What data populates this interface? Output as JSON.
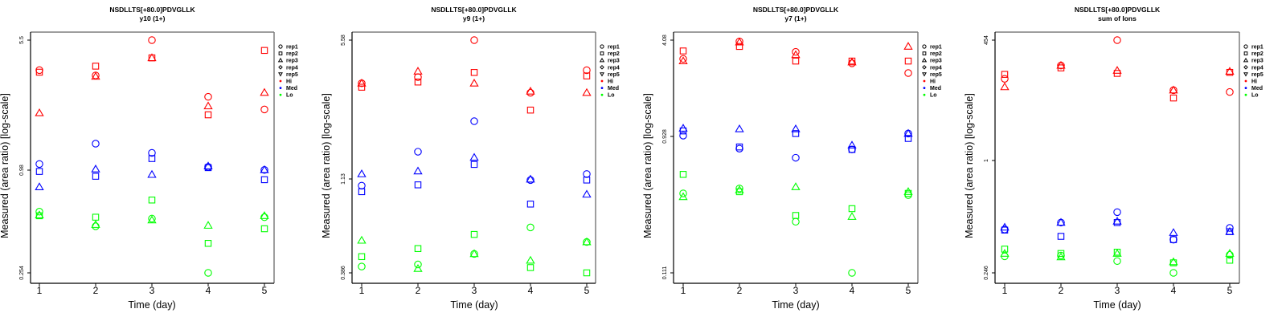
{
  "figure": {
    "legend_entries": [
      {
        "label": "rep1",
        "symbol": "circle"
      },
      {
        "label": "rep2",
        "symbol": "square"
      },
      {
        "label": "rep3",
        "symbol": "triangle-up"
      },
      {
        "label": "rep4",
        "symbol": "diamond"
      },
      {
        "label": "rep5",
        "symbol": "triangle-down"
      },
      {
        "label": "Hi",
        "symbol": "dot",
        "color": "#ff0000"
      },
      {
        "label": "Med",
        "symbol": "dot",
        "color": "#0000ff"
      },
      {
        "label": "Lo",
        "symbol": "dot",
        "color": "#00ff00"
      }
    ],
    "group_colors": {
      "Hi": "#ff0000",
      "Med": "#0000ff",
      "Lo": "#00ff00"
    }
  },
  "chart_data": [
    {
      "type": "scatter",
      "title": "NSDLLTS[+80.0]PDVGLLK",
      "subtitle": "y10 (1+)",
      "xlabel": "Time (day)",
      "ylabel": "Measured (area ratio) [log-scale]",
      "yscale": "log",
      "x_ticks": [
        "1",
        "2",
        "3",
        "4",
        "5"
      ],
      "y_ticks": [
        "5.5",
        "0.98",
        "0.254"
      ],
      "ylim": [
        0.24,
        6.3
      ],
      "legend": "right",
      "grid": false,
      "series": [
        {
          "group": "Hi",
          "rep": "rep1",
          "points": [
            [
              1,
              3.7
            ],
            [
              2,
              3.45
            ],
            [
              3,
              5.5
            ],
            [
              4,
              2.6
            ],
            [
              5,
              2.2
            ]
          ]
        },
        {
          "group": "Hi",
          "rep": "rep2",
          "points": [
            [
              1,
              3.6
            ],
            [
              2,
              3.9
            ],
            [
              3,
              4.35
            ],
            [
              4,
              2.05
            ],
            [
              5,
              4.8
            ]
          ]
        },
        {
          "group": "Hi",
          "rep": "rep3",
          "points": [
            [
              1,
              2.1
            ],
            [
              2,
              3.4
            ],
            [
              3,
              4.35
            ],
            [
              4,
              2.3
            ],
            [
              5,
              2.75
            ]
          ]
        },
        {
          "group": "Med",
          "rep": "rep1",
          "points": [
            [
              1,
              1.07
            ],
            [
              2,
              1.4
            ],
            [
              3,
              1.24
            ],
            [
              4,
              1.03
            ],
            [
              5,
              0.99
            ]
          ]
        },
        {
          "group": "Med",
          "rep": "rep2",
          "points": [
            [
              1,
              0.97
            ],
            [
              2,
              0.91
            ],
            [
              3,
              1.15
            ],
            [
              4,
              1.02
            ],
            [
              5,
              0.87
            ]
          ]
        },
        {
          "group": "Med",
          "rep": "rep3",
          "points": [
            [
              1,
              0.79
            ],
            [
              2,
              1.0
            ],
            [
              3,
              0.93
            ],
            [
              4,
              1.04
            ],
            [
              5,
              0.99
            ]
          ]
        },
        {
          "group": "Lo",
          "rep": "rep1",
          "points": [
            [
              1,
              0.57
            ],
            [
              2,
              0.47
            ],
            [
              3,
              0.52
            ],
            [
              4,
              0.254
            ],
            [
              5,
              0.53
            ]
          ]
        },
        {
          "group": "Lo",
          "rep": "rep2",
          "points": [
            [
              1,
              0.54
            ],
            [
              2,
              0.53
            ],
            [
              3,
              0.665
            ],
            [
              4,
              0.375
            ],
            [
              5,
              0.455
            ]
          ]
        },
        {
          "group": "Lo",
          "rep": "rep3",
          "points": [
            [
              1,
              0.545
            ],
            [
              2,
              0.48
            ],
            [
              3,
              0.51
            ],
            [
              4,
              0.475
            ],
            [
              5,
              0.54
            ]
          ]
        }
      ]
    },
    {
      "type": "scatter",
      "title": "NSDLLTS[+80.0]PDVGLLK",
      "subtitle": "y9 (1+)",
      "xlabel": "Time (day)",
      "ylabel": "Measured (area ratio) [log-scale]",
      "yscale": "log",
      "x_ticks": [
        "1",
        "2",
        "3",
        "4",
        "5"
      ],
      "y_ticks": [
        "5.58",
        "1.13",
        "0.386"
      ],
      "ylim": [
        0.36,
        6.4
      ],
      "legend": "right",
      "grid": false,
      "series": [
        {
          "group": "Hi",
          "rep": "rep1",
          "points": [
            [
              1,
              3.4
            ],
            [
              2,
              3.65
            ],
            [
              3,
              5.58
            ],
            [
              4,
              3.05
            ],
            [
              5,
              3.95
            ]
          ]
        },
        {
          "group": "Hi",
          "rep": "rep2",
          "points": [
            [
              1,
              3.25
            ],
            [
              2,
              3.45
            ],
            [
              3,
              3.85
            ],
            [
              4,
              2.5
            ],
            [
              5,
              3.7
            ]
          ]
        },
        {
          "group": "Hi",
          "rep": "rep3",
          "points": [
            [
              1,
              3.4
            ],
            [
              2,
              3.9
            ],
            [
              3,
              3.4
            ],
            [
              4,
              3.1
            ],
            [
              5,
              3.05
            ]
          ]
        },
        {
          "group": "Med",
          "rep": "rep1",
          "points": [
            [
              1,
              1.05
            ],
            [
              2,
              1.55
            ],
            [
              3,
              2.2
            ],
            [
              4,
              1.12
            ],
            [
              5,
              1.2
            ]
          ]
        },
        {
          "group": "Med",
          "rep": "rep2",
          "points": [
            [
              1,
              0.98
            ],
            [
              2,
              1.06
            ],
            [
              3,
              1.34
            ],
            [
              4,
              0.85
            ],
            [
              5,
              1.12
            ]
          ]
        },
        {
          "group": "Med",
          "rep": "rep3",
          "points": [
            [
              1,
              1.2
            ],
            [
              2,
              1.24
            ],
            [
              3,
              1.45
            ],
            [
              4,
              1.13
            ],
            [
              5,
              0.95
            ]
          ]
        },
        {
          "group": "Lo",
          "rep": "rep1",
          "points": [
            [
              1,
              0.415
            ],
            [
              2,
              0.425
            ],
            [
              3,
              0.48
            ],
            [
              4,
              0.65
            ],
            [
              5,
              0.55
            ]
          ]
        },
        {
          "group": "Lo",
          "rep": "rep2",
          "points": [
            [
              1,
              0.465
            ],
            [
              2,
              0.51
            ],
            [
              3,
              0.6
            ],
            [
              4,
              0.41
            ],
            [
              5,
              0.386
            ]
          ]
        },
        {
          "group": "Lo",
          "rep": "rep3",
          "points": [
            [
              1,
              0.56
            ],
            [
              2,
              0.405
            ],
            [
              3,
              0.48
            ],
            [
              4,
              0.445
            ],
            [
              5,
              0.55
            ]
          ]
        }
      ]
    },
    {
      "type": "scatter",
      "title": "NSDLLTS[+80.0]PDVGLLK",
      "subtitle": "y7 (1+)",
      "xlabel": "Time (day)",
      "ylabel": "Measured (area ratio) [log-scale]",
      "yscale": "log",
      "x_ticks": [
        "1",
        "2",
        "3",
        "4",
        "5"
      ],
      "y_ticks": [
        "4.08",
        "0.928",
        "0.111"
      ],
      "ylim": [
        0.1,
        4.9
      ],
      "legend": "right",
      "grid": false,
      "series": [
        {
          "group": "Hi",
          "rep": "rep1",
          "points": [
            [
              1,
              3.05
            ],
            [
              2,
              4.0
            ],
            [
              3,
              3.4
            ],
            [
              4,
              2.85
            ],
            [
              5,
              2.45
            ]
          ]
        },
        {
          "group": "Hi",
          "rep": "rep2",
          "points": [
            [
              1,
              3.45
            ],
            [
              2,
              3.7
            ],
            [
              3,
              2.95
            ],
            [
              4,
              2.95
            ],
            [
              5,
              2.95
            ]
          ]
        },
        {
          "group": "Hi",
          "rep": "rep3",
          "points": [
            [
              1,
              2.95
            ],
            [
              2,
              3.95
            ],
            [
              3,
              3.25
            ],
            [
              4,
              2.9
            ],
            [
              5,
              3.7
            ]
          ]
        },
        {
          "group": "Med",
          "rep": "rep1",
          "points": [
            [
              1,
              0.93
            ],
            [
              2,
              0.76
            ],
            [
              3,
              0.66
            ],
            [
              4,
              0.75
            ],
            [
              5,
              0.96
            ]
          ]
        },
        {
          "group": "Med",
          "rep": "rep2",
          "points": [
            [
              1,
              1.0
            ],
            [
              2,
              0.78
            ],
            [
              3,
              0.96
            ],
            [
              4,
              0.75
            ],
            [
              5,
              0.89
            ]
          ]
        },
        {
          "group": "Med",
          "rep": "rep3",
          "points": [
            [
              1,
              1.04
            ],
            [
              2,
              1.03
            ],
            [
              3,
              1.03
            ],
            [
              4,
              0.8
            ],
            [
              5,
              0.96
            ]
          ]
        },
        {
          "group": "Lo",
          "rep": "rep1",
          "points": [
            [
              1,
              0.38
            ],
            [
              2,
              0.41
            ],
            [
              3,
              0.245
            ],
            [
              4,
              0.111
            ],
            [
              5,
              0.37
            ]
          ]
        },
        {
          "group": "Lo",
          "rep": "rep2",
          "points": [
            [
              1,
              0.51
            ],
            [
              2,
              0.39
            ],
            [
              3,
              0.27
            ],
            [
              4,
              0.3
            ],
            [
              5,
              0.38
            ]
          ]
        },
        {
          "group": "Lo",
          "rep": "rep3",
          "points": [
            [
              1,
              0.36
            ],
            [
              2,
              0.4
            ],
            [
              3,
              0.42
            ],
            [
              4,
              0.265
            ],
            [
              5,
              0.39
            ]
          ]
        }
      ]
    },
    {
      "type": "scatter",
      "title": "NSDLLTS[+80.0]PDVGLLK",
      "subtitle": "sum of Ions",
      "xlabel": "Time (day)",
      "ylabel": "Measured (area ratio) [log-scale]",
      "yscale": "log",
      "x_ticks": [
        "1",
        "2",
        "3",
        "4",
        "5"
      ],
      "y_ticks": [
        "454",
        "1",
        "0.246"
      ],
      "ylim": [
        0.2,
        700
      ],
      "legend": "right",
      "grid": false,
      "series": [
        {
          "group": "Hi",
          "rep": "rep1",
          "points": [
            [
              1,
              130
            ],
            [
              2,
              200
            ],
            [
              3,
              454
            ],
            [
              4,
              90
            ],
            [
              5,
              85
            ]
          ]
        },
        {
          "group": "Hi",
          "rep": "rep2",
          "points": [
            [
              1,
              150
            ],
            [
              2,
              185
            ],
            [
              3,
              155
            ],
            [
              4,
              70
            ],
            [
              5,
              160
            ]
          ]
        },
        {
          "group": "Hi",
          "rep": "rep3",
          "points": [
            [
              1,
              100
            ],
            [
              2,
              200
            ],
            [
              3,
              170
            ],
            [
              4,
              90
            ],
            [
              5,
              165
            ]
          ]
        },
        {
          "group": "Med",
          "rep": "rep1",
          "points": [
            [
              1,
              1.0
            ],
            [
              2,
              1.25
            ],
            [
              3,
              1.75
            ],
            [
              4,
              0.72
            ],
            [
              5,
              1.05
            ]
          ]
        },
        {
          "group": "Med",
          "rep": "rep2",
          "points": [
            [
              1,
              0.98
            ],
            [
              2,
              0.8
            ],
            [
              3,
              1.25
            ],
            [
              4,
              0.72
            ],
            [
              5,
              0.93
            ]
          ]
        },
        {
          "group": "Med",
          "rep": "rep3",
          "points": [
            [
              1,
              1.07
            ],
            [
              2,
              1.25
            ],
            [
              3,
              1.3
            ],
            [
              4,
              0.9
            ],
            [
              5,
              0.93
            ]
          ]
        },
        {
          "group": "Lo",
          "rep": "rep1",
          "points": [
            [
              1,
              0.42
            ],
            [
              2,
              0.43
            ],
            [
              3,
              0.36
            ],
            [
              4,
              0.246
            ],
            [
              5,
              0.44
            ]
          ]
        },
        {
          "group": "Lo",
          "rep": "rep2",
          "points": [
            [
              1,
              0.53
            ],
            [
              2,
              0.46
            ],
            [
              3,
              0.48
            ],
            [
              4,
              0.34
            ],
            [
              5,
              0.37
            ]
          ]
        },
        {
          "group": "Lo",
          "rep": "rep3",
          "points": [
            [
              1,
              0.46
            ],
            [
              2,
              0.41
            ],
            [
              3,
              0.46
            ],
            [
              4,
              0.35
            ],
            [
              5,
              0.46
            ]
          ]
        }
      ]
    }
  ]
}
